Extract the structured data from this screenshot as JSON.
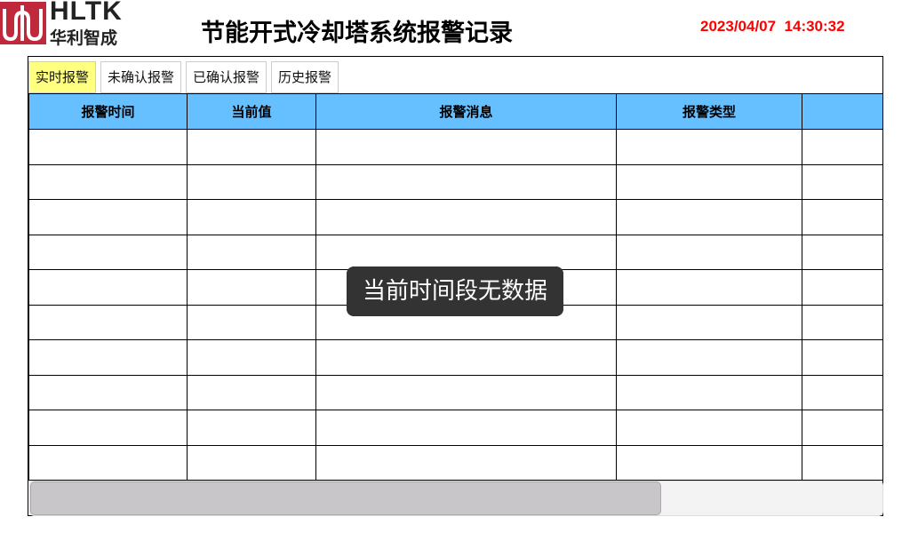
{
  "header": {
    "brand": "HLTK",
    "brand_cn": "华利智成",
    "title": "节能开式冷却塔系统报警记录",
    "clock": "2023/04/07  14:30:32",
    "brand_color": "#c0283c",
    "clock_color": "#ff0000"
  },
  "toast": {
    "message": "当前时间段无数据"
  },
  "tabs": [
    {
      "label": "实时报警",
      "active": true
    },
    {
      "label": "未确认报警"
    },
    {
      "label": "已确认报警"
    },
    {
      "label": "历史报警"
    }
  ],
  "table": {
    "columns": [
      "报警时间",
      "当前值",
      "报警消息",
      "报警类型",
      ""
    ],
    "rows": [],
    "header_color": "#66bfff"
  },
  "scrollbar": {
    "horizontal_position_percent": 74
  }
}
